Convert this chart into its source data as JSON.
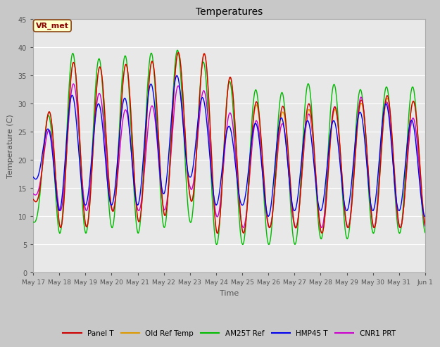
{
  "title": "Temperatures",
  "xlabel": "Time",
  "ylabel": "Temperature (C)",
  "ylim": [
    0,
    45
  ],
  "yticks": [
    0,
    5,
    10,
    15,
    20,
    25,
    30,
    35,
    40,
    45
  ],
  "annotation": "VR_met",
  "fig_bg_color": "#c8c8c8",
  "plot_bg_color": "#e8e8e8",
  "series": {
    "Panel T": {
      "color": "#cc0000",
      "lw": 1.0
    },
    "Old Ref Temp": {
      "color": "#dd9900",
      "lw": 1.0
    },
    "AM25T Ref": {
      "color": "#00bb00",
      "lw": 1.0
    },
    "HMP45 T": {
      "color": "#0000ee",
      "lw": 1.0
    },
    "CNR1 PRT": {
      "color": "#cc00cc",
      "lw": 1.0
    }
  },
  "xtick_labels": [
    "May 17",
    "May 18",
    "May 19",
    "May 20",
    "May 21",
    "May 22",
    "May 23",
    "May 24",
    "May 25",
    "May 26",
    "May 27",
    "May 28",
    "May 29",
    "May 30",
    "May 31",
    "Jun 1"
  ],
  "xtick_days": [
    17,
    18,
    19,
    20,
    21,
    22,
    23,
    24,
    25,
    26,
    27,
    28,
    29,
    30,
    31,
    32
  ],
  "n_points": 2000
}
